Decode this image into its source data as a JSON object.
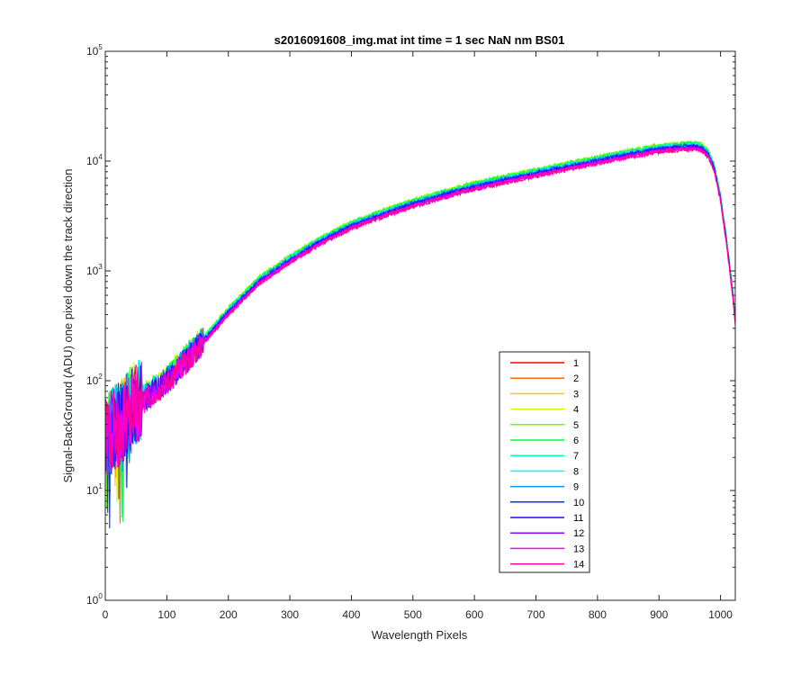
{
  "chart_data": {
    "type": "line",
    "title": "s2016091608_img.mat int time = 1 sec  NaN nm BS01",
    "xlabel": "Wavelength Pixels",
    "ylabel": "Signal-BackGround (ADU) one pixel down the track direction",
    "xlim": [
      0,
      1024
    ],
    "ylim": [
      1,
      100000
    ],
    "yscale": "log",
    "grid": false,
    "legend_position": "lower-right",
    "x_ticks": [
      "0",
      "100",
      "200",
      "300",
      "400",
      "500",
      "600",
      "700",
      "800",
      "900",
      "1000"
    ],
    "x_tick_values": [
      0,
      100,
      200,
      300,
      400,
      500,
      600,
      700,
      800,
      900,
      1000
    ],
    "y_ticks": [
      {
        "value": 1,
        "base": "10",
        "exp": "0"
      },
      {
        "value": 10,
        "base": "10",
        "exp": "1"
      },
      {
        "value": 100,
        "base": "10",
        "exp": "2"
      },
      {
        "value": 1000,
        "base": "10",
        "exp": "3"
      },
      {
        "value": 10000,
        "base": "10",
        "exp": "4"
      },
      {
        "value": 100000,
        "base": "10",
        "exp": "5"
      }
    ],
    "shared_profile": {
      "x": [
        0,
        20,
        50,
        100,
        150,
        200,
        250,
        300,
        350,
        400,
        450,
        500,
        550,
        600,
        650,
        700,
        750,
        800,
        850,
        900,
        940,
        960,
        970,
        980,
        990,
        1000,
        1010,
        1020,
        1024
      ],
      "y": [
        30,
        40,
        60,
        100,
        200,
        420,
        800,
        1250,
        1850,
        2550,
        3250,
        4050,
        4900,
        5800,
        6700,
        7700,
        8800,
        10000,
        11400,
        12800,
        13400,
        13500,
        13000,
        11500,
        8500,
        4500,
        1800,
        600,
        350
      ]
    },
    "series": [
      {
        "name": "1",
        "color": "#ff0000",
        "scale": 1.0
      },
      {
        "name": "2",
        "color": "#ff6a00",
        "scale": 1.02
      },
      {
        "name": "3",
        "color": "#ffc800",
        "scale": 1.04
      },
      {
        "name": "4",
        "color": "#c8ff00",
        "scale": 1.08
      },
      {
        "name": "5",
        "color": "#64ff00",
        "scale": 1.09
      },
      {
        "name": "6",
        "color": "#00ff3c",
        "scale": 1.07
      },
      {
        "name": "7",
        "color": "#00ffa0",
        "scale": 1.05
      },
      {
        "name": "8",
        "color": "#00ffff",
        "scale": 1.04
      },
      {
        "name": "9",
        "color": "#0096ff",
        "scale": 1.03
      },
      {
        "name": "10",
        "color": "#0032ff",
        "scale": 1.01
      },
      {
        "name": "11",
        "color": "#3200ff",
        "scale": 0.99
      },
      {
        "name": "12",
        "color": "#9600ff",
        "scale": 0.97
      },
      {
        "name": "13",
        "color": "#ff00ff",
        "scale": 0.96
      },
      {
        "name": "14",
        "color": "#ff0096",
        "scale": 0.95
      }
    ]
  }
}
